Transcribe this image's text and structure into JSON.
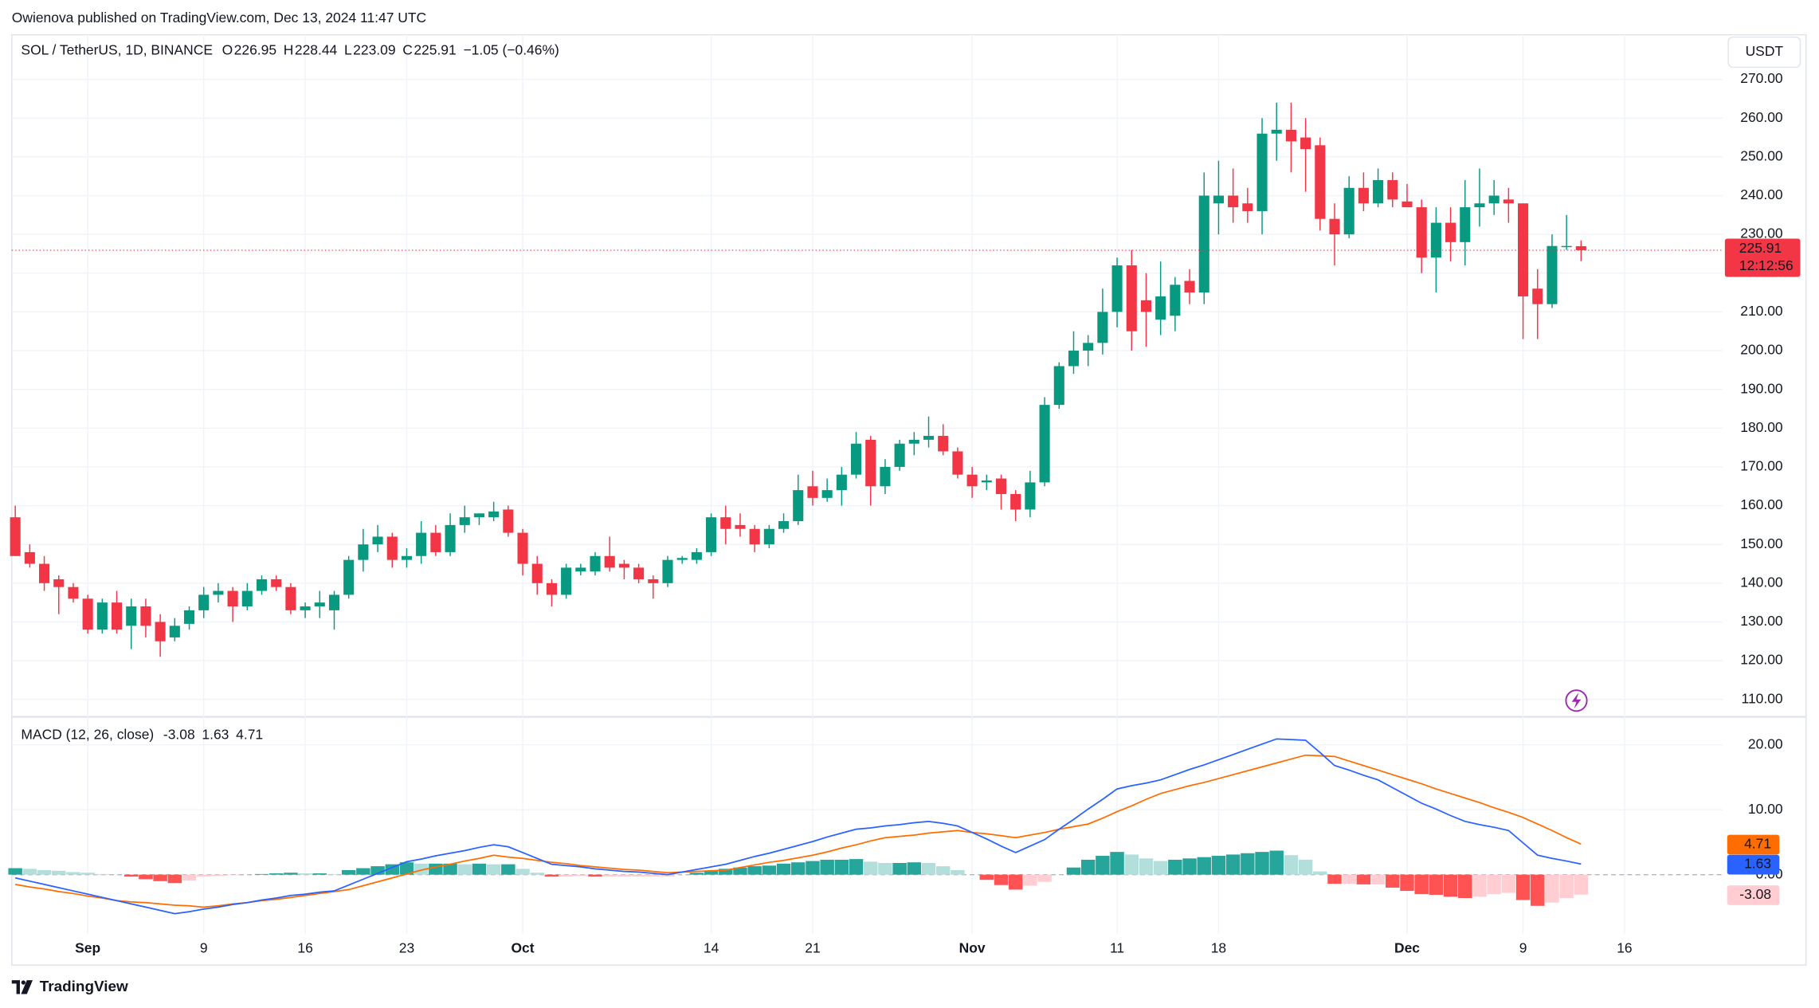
{
  "header": {
    "publisher": "Owienova published on TradingView.com, Dec 13, 2024 11:47 UTC"
  },
  "footer": {
    "brand": "TradingView"
  },
  "currency_button": "USDT",
  "chart_data": [
    {
      "type": "candlestick",
      "title": "SOL / TetherUS, 1D, BINANCE",
      "ohlc_labels": [
        "O",
        "H",
        "L",
        "C"
      ],
      "change": "−1.05 (−0.46%)",
      "countdown": "12:12:56",
      "up_color": "#089981",
      "down_color": "#f23645",
      "grid": true,
      "x": [
        "2024-08-27",
        "2024-08-28",
        "2024-08-29",
        "2024-08-30",
        "2024-08-31",
        "2024-09-01",
        "2024-09-02",
        "2024-09-03",
        "2024-09-04",
        "2024-09-05",
        "2024-09-06",
        "2024-09-07",
        "2024-09-08",
        "2024-09-09",
        "2024-09-10",
        "2024-09-11",
        "2024-09-12",
        "2024-09-13",
        "2024-09-14",
        "2024-09-15",
        "2024-09-16",
        "2024-09-17",
        "2024-09-18",
        "2024-09-19",
        "2024-09-20",
        "2024-09-21",
        "2024-09-22",
        "2024-09-23",
        "2024-09-24",
        "2024-09-25",
        "2024-09-26",
        "2024-09-27",
        "2024-09-28",
        "2024-09-29",
        "2024-09-30",
        "2024-10-01",
        "2024-10-02",
        "2024-10-03",
        "2024-10-04",
        "2024-10-05",
        "2024-10-06",
        "2024-10-07",
        "2024-10-08",
        "2024-10-09",
        "2024-10-10",
        "2024-10-11",
        "2024-10-12",
        "2024-10-13",
        "2024-10-14",
        "2024-10-15",
        "2024-10-16",
        "2024-10-17",
        "2024-10-18",
        "2024-10-19",
        "2024-10-20",
        "2024-10-21",
        "2024-10-22",
        "2024-10-23",
        "2024-10-24",
        "2024-10-25",
        "2024-10-26",
        "2024-10-27",
        "2024-10-28",
        "2024-10-29",
        "2024-10-30",
        "2024-10-31",
        "2024-11-01",
        "2024-11-02",
        "2024-11-03",
        "2024-11-04",
        "2024-11-05",
        "2024-11-06",
        "2024-11-07",
        "2024-11-08",
        "2024-11-09",
        "2024-11-10",
        "2024-11-11",
        "2024-11-12",
        "2024-11-13",
        "2024-11-14",
        "2024-11-15",
        "2024-11-16",
        "2024-11-17",
        "2024-11-18",
        "2024-11-19",
        "2024-11-20",
        "2024-11-21",
        "2024-11-22",
        "2024-11-23",
        "2024-11-24",
        "2024-11-25",
        "2024-11-26",
        "2024-11-27",
        "2024-11-28",
        "2024-11-29",
        "2024-11-30",
        "2024-12-01",
        "2024-12-02",
        "2024-12-03",
        "2024-12-04",
        "2024-12-05",
        "2024-12-06",
        "2024-12-07",
        "2024-12-08",
        "2024-12-09",
        "2024-12-10",
        "2024-12-11",
        "2024-12-12",
        "2024-12-13"
      ],
      "open": [
        157,
        148,
        145,
        141,
        139,
        136,
        128,
        135,
        129,
        134,
        130,
        126,
        129.5,
        133,
        137,
        138,
        134,
        138,
        141,
        139,
        133,
        134,
        133,
        137,
        146,
        150,
        152,
        146,
        147,
        153,
        148,
        155,
        157,
        157,
        159,
        153,
        145,
        140,
        137,
        143,
        143,
        147,
        145,
        144,
        141,
        140,
        146,
        146,
        148,
        157,
        155,
        154,
        150,
        154,
        156,
        165,
        162,
        164,
        168,
        177,
        165,
        170,
        176,
        177,
        178,
        174,
        168,
        166,
        167,
        163,
        159,
        166,
        186,
        196,
        200,
        202,
        210,
        222,
        213,
        208,
        209,
        218,
        215,
        238,
        240,
        238,
        236,
        256,
        257,
        255,
        253,
        234,
        230,
        242,
        238,
        244,
        238.5,
        237,
        224,
        233,
        228,
        237,
        238,
        239,
        238,
        216,
        212,
        227,
        226.95
      ],
      "high": [
        160,
        150,
        147,
        142,
        140,
        137,
        136,
        138,
        136,
        136,
        132,
        131,
        134,
        139,
        140,
        139,
        140,
        142,
        142,
        140,
        135,
        138,
        138,
        147,
        154,
        155,
        153,
        149,
        156,
        155,
        158,
        160,
        158,
        161,
        160,
        154,
        147,
        141,
        145,
        145,
        148,
        152,
        146,
        145,
        142,
        147,
        147,
        149,
        158,
        160,
        158,
        155,
        155,
        158,
        168,
        169,
        167,
        170,
        179,
        178,
        172,
        177,
        179,
        183,
        181,
        175,
        170,
        168,
        168,
        164,
        169,
        188,
        197,
        205,
        204,
        216,
        224,
        226,
        220,
        223,
        219,
        221,
        246,
        249,
        247,
        242,
        260,
        264,
        264,
        260,
        255,
        238,
        245,
        246,
        247,
        246,
        243,
        239,
        237,
        237,
        244,
        247,
        244,
        242,
        238,
        221,
        230,
        235,
        228.44
      ],
      "low": [
        147,
        144,
        138,
        132,
        135,
        127,
        127,
        127,
        123,
        126,
        121,
        125,
        128,
        131,
        135,
        130,
        133,
        137,
        138,
        132,
        131,
        131,
        128,
        136,
        143,
        148,
        144,
        144,
        145,
        147,
        147,
        153,
        155,
        156,
        152,
        142,
        137,
        134,
        136,
        142,
        142,
        143,
        141,
        140,
        136,
        139,
        145,
        145,
        147,
        150,
        152,
        148,
        149,
        153,
        155,
        160,
        161,
        160,
        167,
        160,
        163,
        169,
        173,
        175,
        173,
        167,
        162,
        164,
        159,
        156,
        157,
        165,
        185,
        194,
        196,
        199,
        206,
        200,
        201,
        204,
        205,
        212,
        212,
        230,
        233,
        233,
        230,
        249,
        246,
        241,
        231,
        222,
        229,
        236,
        237,
        237,
        237,
        220,
        215,
        223,
        222,
        232,
        235,
        233,
        203,
        203,
        211,
        226,
        223.09
      ],
      "close": [
        147,
        145,
        140,
        139,
        136,
        128,
        135,
        128,
        134,
        129,
        125,
        129,
        133,
        137,
        138,
        134,
        138,
        141,
        139,
        133,
        134,
        135,
        137,
        146,
        150,
        152,
        146,
        147,
        153,
        148,
        155,
        157,
        158,
        158.5,
        153,
        145,
        140,
        137,
        144,
        144,
        147,
        144,
        144,
        141,
        140,
        146,
        146.5,
        148,
        157,
        154,
        154,
        150,
        154,
        156,
        164,
        162,
        164,
        168,
        176,
        165,
        170,
        176,
        177,
        178,
        174,
        168,
        165,
        166.5,
        163,
        159,
        166,
        186,
        196,
        200,
        202,
        210,
        222,
        205,
        210,
        214,
        217,
        215,
        240,
        240,
        237,
        236,
        256,
        257,
        254,
        252,
        234,
        230,
        242,
        238,
        244,
        239,
        237,
        224,
        233,
        228,
        237,
        238,
        240,
        238,
        214,
        212,
        227,
        227,
        225.91
      ],
      "ylim": [
        105.5,
        281.5
      ],
      "yticks": [
        {
          "value": 110,
          "label": "110.00"
        },
        {
          "value": 120,
          "label": "120.00"
        },
        {
          "value": 130,
          "label": "130.00"
        },
        {
          "value": 140,
          "label": "140.00"
        },
        {
          "value": 150,
          "label": "150.00"
        },
        {
          "value": 160,
          "label": "160.00"
        },
        {
          "value": 170,
          "label": "170.00"
        },
        {
          "value": 180,
          "label": "180.00"
        },
        {
          "value": 190,
          "label": "190.00"
        },
        {
          "value": 200,
          "label": "200.00"
        },
        {
          "value": 210,
          "label": "210.00"
        },
        {
          "value": 220,
          "label": "220.00"
        },
        {
          "value": 230,
          "label": "230.00"
        },
        {
          "value": 240,
          "label": "240.00"
        },
        {
          "value": 250,
          "label": "250.00"
        },
        {
          "value": 260,
          "label": "260.00"
        },
        {
          "value": 270,
          "label": "270.00"
        }
      ],
      "xticks": [
        {
          "value": "2024-09-01",
          "label": "Sep"
        },
        {
          "value": "2024-09-09",
          "label": "9"
        },
        {
          "value": "2024-09-16",
          "label": "16"
        },
        {
          "value": "2024-09-23",
          "label": "23"
        },
        {
          "value": "2024-10-01",
          "label": "Oct"
        },
        {
          "value": "2024-10-14",
          "label": "14"
        },
        {
          "value": "2024-10-21",
          "label": "21"
        },
        {
          "value": "2024-11-01",
          "label": "Nov"
        },
        {
          "value": "2024-11-11",
          "label": "11"
        },
        {
          "value": "2024-11-18",
          "label": "18"
        },
        {
          "value": "2024-12-01",
          "label": "Dec"
        },
        {
          "value": "2024-12-09",
          "label": "9"
        },
        {
          "value": "2024-12-16",
          "label": "16"
        }
      ]
    },
    {
      "type": "macd",
      "title": "MACD (12, 26, close)",
      "macd_color": "#2962ff",
      "signal_color": "#ff6d00",
      "hist_colors": {
        "pos_up": "#26a69a",
        "pos_down": "#b2dfdb",
        "neg_down": "#ff5252",
        "neg_up": "#ffcdd2"
      },
      "hist": [
        1.0,
        0.9,
        0.7,
        0.6,
        0.4,
        0.3,
        0.1,
        0.0,
        -0.3,
        -0.7,
        -1.0,
        -1.3,
        -0.9,
        -0.3,
        -0.2,
        -0.1,
        0.0,
        0.1,
        0.2,
        0.3,
        0.2,
        0.2,
        0.1,
        0.7,
        1.0,
        1.3,
        1.6,
        1.9,
        1.7,
        1.7,
        1.7,
        1.6,
        1.7,
        1.6,
        1.6,
        0.9,
        0.3,
        -0.3,
        -0.3,
        -0.2,
        -0.3,
        -0.3,
        -0.3,
        -0.3,
        -0.3,
        -0.3,
        0.0,
        0.3,
        0.6,
        0.9,
        1.1,
        1.3,
        1.4,
        1.7,
        1.9,
        2.1,
        2.3,
        2.3,
        2.4,
        2.0,
        1.8,
        1.8,
        1.9,
        1.8,
        1.3,
        0.7,
        0.0,
        -0.8,
        -1.6,
        -2.3,
        -1.7,
        -1.1,
        0.0,
        1.1,
        2.3,
        2.9,
        3.5,
        3.1,
        2.5,
        2.1,
        2.3,
        2.5,
        2.7,
        2.9,
        3.1,
        3.3,
        3.5,
        3.7,
        3.0,
        2.3,
        0.5,
        -1.4,
        -1.4,
        -1.5,
        -1.5,
        -2.0,
        -2.5,
        -3.0,
        -3.1,
        -3.4,
        -3.6,
        -3.4,
        -3.0,
        -2.8,
        -3.9,
        -4.8,
        -4.3,
        -3.6,
        -3.08
      ],
      "macd": [
        -0.5,
        -1.0,
        -1.5,
        -2.0,
        -2.5,
        -3.0,
        -3.5,
        -4.0,
        -4.5,
        -5.0,
        -5.5,
        -6.0,
        -5.7,
        -5.3,
        -5.0,
        -4.6,
        -4.3,
        -3.9,
        -3.6,
        -3.2,
        -3.0,
        -2.7,
        -2.5,
        -1.6,
        -0.7,
        0.2,
        1.1,
        2.0,
        2.4,
        2.9,
        3.3,
        3.7,
        4.2,
        4.6,
        4.3,
        3.4,
        2.5,
        1.6,
        1.4,
        1.2,
        0.9,
        0.7,
        0.5,
        0.4,
        0.2,
        0.0,
        0.4,
        0.8,
        1.2,
        1.6,
        2.2,
        2.8,
        3.3,
        3.9,
        4.5,
        5.1,
        5.8,
        6.4,
        7.0,
        7.2,
        7.5,
        7.7,
        8.0,
        8.2,
        7.9,
        7.5,
        6.5,
        5.5,
        4.4,
        3.4,
        4.4,
        5.4,
        7.0,
        8.5,
        10.1,
        11.6,
        13.2,
        13.7,
        14.1,
        14.6,
        15.4,
        16.2,
        16.9,
        17.7,
        18.5,
        19.3,
        20.1,
        20.9,
        20.8,
        20.7,
        18.8,
        16.8,
        16.1,
        15.3,
        14.6,
        13.4,
        12.2,
        11.0,
        10.1,
        9.1,
        8.2,
        7.7,
        7.3,
        6.8,
        4.9,
        3.0,
        2.5,
        2.1,
        1.63
      ],
      "signal": [
        -1.5,
        -1.9,
        -2.2,
        -2.6,
        -2.9,
        -3.3,
        -3.6,
        -4.0,
        -4.2,
        -4.3,
        -4.5,
        -4.7,
        -4.8,
        -5.0,
        -4.8,
        -4.5,
        -4.3,
        -4.0,
        -3.8,
        -3.5,
        -3.2,
        -2.9,
        -2.6,
        -2.3,
        -1.7,
        -1.1,
        -0.5,
        0.1,
        0.7,
        1.2,
        1.6,
        2.1,
        2.5,
        3.0,
        2.7,
        2.5,
        2.2,
        1.9,
        1.7,
        1.4,
        1.2,
        1.0,
        0.8,
        0.7,
        0.5,
        0.3,
        0.4,
        0.5,
        0.6,
        0.7,
        1.1,
        1.5,
        1.9,
        2.2,
        2.6,
        3.0,
        3.5,
        4.1,
        4.6,
        5.2,
        5.7,
        5.9,
        6.1,
        6.4,
        6.6,
        6.8,
        6.5,
        6.3,
        6.0,
        5.7,
        6.1,
        6.5,
        7.0,
        7.4,
        7.8,
        8.7,
        9.7,
        10.6,
        11.6,
        12.5,
        13.1,
        13.7,
        14.2,
        14.8,
        15.4,
        16.0,
        16.6,
        17.2,
        17.8,
        18.4,
        18.3,
        18.2,
        17.5,
        16.8,
        16.1,
        15.4,
        14.7,
        14.0,
        13.2,
        12.5,
        11.8,
        11.1,
        10.3,
        9.6,
        8.8,
        7.8,
        6.8,
        5.7,
        4.71
      ],
      "ylim": [
        -9.1,
        24.3
      ],
      "yticks": [
        {
          "value": 0,
          "label": "0.00"
        },
        {
          "value": 10,
          "label": "10.00"
        },
        {
          "value": 20,
          "label": "20.00"
        }
      ]
    }
  ]
}
